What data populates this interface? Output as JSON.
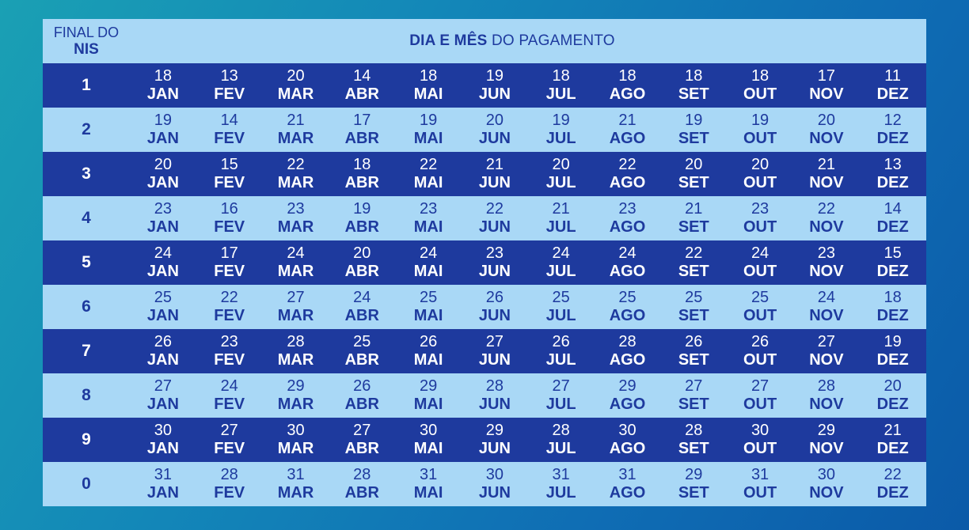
{
  "header": {
    "col1_line1": "FINAL DO",
    "col1_line2": "NIS",
    "title_bold": "DIA E MÊS",
    "title_rest": "DO PAGAMENTO"
  },
  "months": [
    "JAN",
    "FEV",
    "MAR",
    "ABR",
    "MAI",
    "JUN",
    "JUL",
    "AGO",
    "SET",
    "OUT",
    "NOV",
    "DEZ"
  ],
  "rows": [
    {
      "nis": "1",
      "days": [
        "18",
        "13",
        "20",
        "14",
        "18",
        "19",
        "18",
        "18",
        "18",
        "18",
        "17",
        "11"
      ]
    },
    {
      "nis": "2",
      "days": [
        "19",
        "14",
        "21",
        "17",
        "19",
        "20",
        "19",
        "21",
        "19",
        "19",
        "20",
        "12"
      ]
    },
    {
      "nis": "3",
      "days": [
        "20",
        "15",
        "22",
        "18",
        "22",
        "21",
        "20",
        "22",
        "20",
        "20",
        "21",
        "13"
      ]
    },
    {
      "nis": "4",
      "days": [
        "23",
        "16",
        "23",
        "19",
        "23",
        "22",
        "21",
        "23",
        "21",
        "23",
        "22",
        "14"
      ]
    },
    {
      "nis": "5",
      "days": [
        "24",
        "17",
        "24",
        "20",
        "24",
        "23",
        "24",
        "24",
        "22",
        "24",
        "23",
        "15"
      ]
    },
    {
      "nis": "6",
      "days": [
        "25",
        "22",
        "27",
        "24",
        "25",
        "26",
        "25",
        "25",
        "25",
        "25",
        "24",
        "18"
      ]
    },
    {
      "nis": "7",
      "days": [
        "26",
        "23",
        "28",
        "25",
        "26",
        "27",
        "26",
        "28",
        "26",
        "26",
        "27",
        "19"
      ]
    },
    {
      "nis": "8",
      "days": [
        "27",
        "24",
        "29",
        "26",
        "29",
        "28",
        "27",
        "29",
        "27",
        "27",
        "28",
        "20"
      ]
    },
    {
      "nis": "9",
      "days": [
        "30",
        "27",
        "30",
        "27",
        "30",
        "29",
        "28",
        "30",
        "28",
        "30",
        "29",
        "21"
      ]
    },
    {
      "nis": "0",
      "days": [
        "31",
        "28",
        "31",
        "28",
        "31",
        "30",
        "31",
        "31",
        "29",
        "31",
        "30",
        "22"
      ]
    }
  ],
  "colors": {
    "dark_row": "#1e3a9e",
    "light_row": "#a9d8f6"
  }
}
